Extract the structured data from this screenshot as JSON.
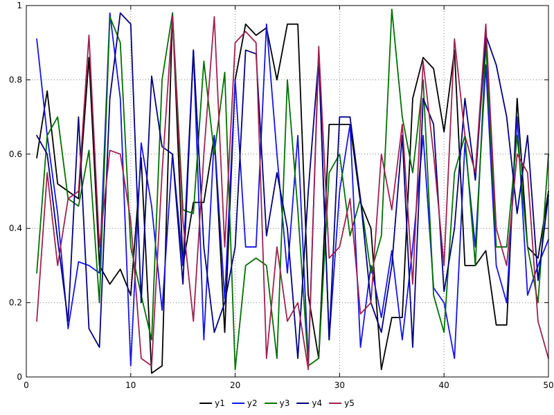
{
  "chart_data": {
    "type": "line",
    "title": "",
    "xlabel": "",
    "ylabel": "",
    "xlim": [
      0,
      50
    ],
    "ylim": [
      0,
      1
    ],
    "xticks": [
      0,
      10,
      20,
      30,
      40,
      50
    ],
    "xtick_labels": [
      "0",
      "10",
      "20",
      "30",
      "40",
      "50"
    ],
    "yticks": [
      0,
      0.2,
      0.4,
      0.6,
      0.8,
      1
    ],
    "ytick_labels": [
      "0",
      "0.2",
      "0.4",
      "0.6",
      "0.8",
      "1"
    ],
    "grid": true,
    "grid_style": "dotted",
    "legend_position": "bottom-center",
    "x": [
      1,
      2,
      3,
      4,
      5,
      6,
      7,
      8,
      9,
      10,
      11,
      12,
      13,
      14,
      15,
      16,
      17,
      18,
      19,
      20,
      21,
      22,
      23,
      24,
      25,
      26,
      27,
      28,
      29,
      30,
      31,
      32,
      33,
      34,
      35,
      36,
      37,
      38,
      39,
      40,
      41,
      42,
      43,
      44,
      45,
      46,
      47,
      48,
      49,
      50
    ],
    "series": [
      {
        "name": "y1",
        "color": "#000000",
        "values": [
          0.59,
          0.77,
          0.52,
          0.5,
          0.48,
          0.86,
          0.3,
          0.25,
          0.29,
          0.22,
          0.59,
          0.01,
          0.03,
          0.98,
          0.3,
          0.47,
          0.47,
          0.65,
          0.12,
          0.8,
          0.95,
          0.92,
          0.94,
          0.8,
          0.95,
          0.95,
          0.22,
          0.05,
          0.68,
          0.68,
          0.68,
          0.47,
          0.4,
          0.02,
          0.16,
          0.16,
          0.75,
          0.86,
          0.83,
          0.66,
          0.88,
          0.3,
          0.3,
          0.34,
          0.14,
          0.14,
          0.75,
          0.35,
          0.32,
          0.5
        ]
      },
      {
        "name": "y2",
        "color": "#1414e8",
        "values": [
          0.91,
          0.65,
          0.44,
          0.13,
          0.31,
          0.3,
          0.28,
          0.98,
          0.75,
          0.03,
          0.63,
          0.46,
          0.18,
          0.6,
          0.3,
          0.88,
          0.1,
          0.65,
          0.21,
          0.8,
          0.35,
          0.35,
          0.95,
          0.6,
          0.28,
          0.65,
          0.04,
          0.87,
          0.1,
          0.5,
          0.68,
          0.08,
          0.3,
          0.16,
          0.34,
          0.1,
          0.35,
          0.65,
          0.24,
          0.2,
          0.05,
          0.63,
          0.35,
          0.84,
          0.3,
          0.2,
          0.7,
          0.22,
          0.3,
          0.37
        ]
      },
      {
        "name": "y3",
        "color": "#007000",
        "values": [
          0.28,
          0.65,
          0.7,
          0.48,
          0.46,
          0.61,
          0.2,
          0.97,
          0.9,
          0.35,
          0.22,
          0.1,
          0.8,
          0.98,
          0.45,
          0.44,
          0.85,
          0.6,
          0.82,
          0.02,
          0.3,
          0.32,
          0.3,
          0.05,
          0.8,
          0.45,
          0.03,
          0.05,
          0.55,
          0.6,
          0.38,
          0.48,
          0.28,
          0.38,
          0.99,
          0.7,
          0.55,
          0.8,
          0.22,
          0.12,
          0.55,
          0.65,
          0.3,
          0.9,
          0.35,
          0.35,
          0.65,
          0.35,
          0.2,
          0.6
        ]
      },
      {
        "name": "y4",
        "color": "#000080",
        "values": [
          0.65,
          0.6,
          0.37,
          0.15,
          0.7,
          0.13,
          0.08,
          0.75,
          0.98,
          0.95,
          0.2,
          0.81,
          0.62,
          0.6,
          0.25,
          0.88,
          0.35,
          0.12,
          0.2,
          0.35,
          0.88,
          0.87,
          0.38,
          0.55,
          0.4,
          0.05,
          0.5,
          0.86,
          0.1,
          0.7,
          0.7,
          0.48,
          0.2,
          0.12,
          0.3,
          0.65,
          0.08,
          0.75,
          0.68,
          0.23,
          0.4,
          0.75,
          0.53,
          0.92,
          0.84,
          0.7,
          0.44,
          0.65,
          0.26,
          0.49
        ]
      },
      {
        "name": "y5",
        "color": "#a02050",
        "values": [
          0.15,
          0.55,
          0.3,
          0.48,
          0.5,
          0.92,
          0.35,
          0.61,
          0.6,
          0.42,
          0.05,
          0.03,
          0.55,
          0.97,
          0.42,
          0.15,
          0.6,
          0.97,
          0.35,
          0.9,
          0.93,
          0.9,
          0.05,
          0.35,
          0.15,
          0.2,
          0.02,
          0.89,
          0.32,
          0.35,
          0.48,
          0.17,
          0.2,
          0.6,
          0.45,
          0.68,
          0.25,
          0.85,
          0.6,
          0.3,
          0.91,
          0.65,
          0.55,
          0.95,
          0.4,
          0.3,
          0.6,
          0.55,
          0.15,
          0.05
        ]
      }
    ]
  },
  "style": {
    "background": "#ffffff",
    "axis_color": "#000000",
    "grid_color": "#7a7a7a",
    "tick_label_color": "#000000"
  }
}
